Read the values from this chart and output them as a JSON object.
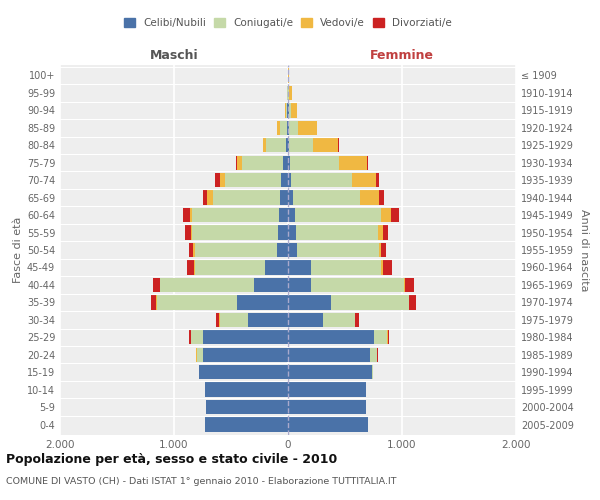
{
  "age_groups": [
    "0-4",
    "5-9",
    "10-14",
    "15-19",
    "20-24",
    "25-29",
    "30-34",
    "35-39",
    "40-44",
    "45-49",
    "50-54",
    "55-59",
    "60-64",
    "65-69",
    "70-74",
    "75-79",
    "80-84",
    "85-89",
    "90-94",
    "95-99",
    "100+"
  ],
  "birth_years": [
    "2005-2009",
    "2000-2004",
    "1995-1999",
    "1990-1994",
    "1985-1989",
    "1980-1984",
    "1975-1979",
    "1970-1974",
    "1965-1969",
    "1960-1964",
    "1955-1959",
    "1950-1954",
    "1945-1949",
    "1940-1944",
    "1935-1939",
    "1930-1934",
    "1925-1929",
    "1920-1924",
    "1915-1919",
    "1910-1914",
    "≤ 1909"
  ],
  "male": {
    "celibi": [
      730,
      720,
      730,
      780,
      750,
      750,
      350,
      450,
      300,
      200,
      100,
      90,
      80,
      70,
      60,
      40,
      20,
      10,
      5,
      2,
      0
    ],
    "coniugati": [
      0,
      1,
      2,
      5,
      50,
      100,
      250,
      700,
      820,
      620,
      720,
      750,
      760,
      590,
      490,
      360,
      170,
      60,
      15,
      5,
      0
    ],
    "vedovi": [
      0,
      0,
      0,
      0,
      5,
      5,
      2,
      5,
      5,
      5,
      10,
      15,
      20,
      50,
      50,
      50,
      30,
      25,
      5,
      2,
      0
    ],
    "divorziati": [
      0,
      0,
      0,
      0,
      5,
      10,
      30,
      50,
      60,
      60,
      40,
      50,
      60,
      40,
      40,
      5,
      0,
      0,
      0,
      0,
      0
    ]
  },
  "female": {
    "nubili": [
      700,
      680,
      680,
      740,
      720,
      750,
      310,
      380,
      200,
      200,
      80,
      70,
      60,
      40,
      30,
      20,
      10,
      5,
      5,
      2,
      0
    ],
    "coniugate": [
      0,
      1,
      2,
      5,
      60,
      120,
      280,
      680,
      820,
      620,
      720,
      720,
      760,
      590,
      530,
      430,
      210,
      85,
      20,
      10,
      2
    ],
    "vedove": [
      0,
      0,
      0,
      0,
      5,
      5,
      2,
      5,
      5,
      10,
      20,
      40,
      80,
      170,
      210,
      240,
      220,
      160,
      50,
      20,
      5
    ],
    "divorziate": [
      0,
      0,
      0,
      0,
      5,
      10,
      30,
      60,
      80,
      80,
      40,
      50,
      70,
      40,
      30,
      10,
      5,
      0,
      0,
      0,
      0
    ]
  },
  "colors": {
    "celibi": "#4a72a8",
    "coniugati": "#c5d9a8",
    "vedovi": "#f0b842",
    "divorziati": "#cc2222"
  },
  "xlim": 2000,
  "xtick_labels": [
    "2.000",
    "1.000",
    "0",
    "1.000",
    "2.000"
  ],
  "xtick_vals": [
    -2000,
    -1000,
    0,
    1000,
    2000
  ],
  "title": "Popolazione per età, sesso e stato civile - 2010",
  "subtitle": "COMUNE DI VASTO (CH) - Dati ISTAT 1° gennaio 2010 - Elaborazione TUTTITALIA.IT",
  "xlabel_left": "Maschi",
  "xlabel_right": "Femmine",
  "ylabel_left": "Fasce di età",
  "ylabel_right": "Anni di nascita",
  "bg_color": "#ffffff",
  "plot_bg_color": "#eeeeee",
  "grid_color": "#ffffff",
  "legend_labels": [
    "Celibi/Nubili",
    "Coniugati/e",
    "Vedovi/e",
    "Divorziati/e"
  ]
}
